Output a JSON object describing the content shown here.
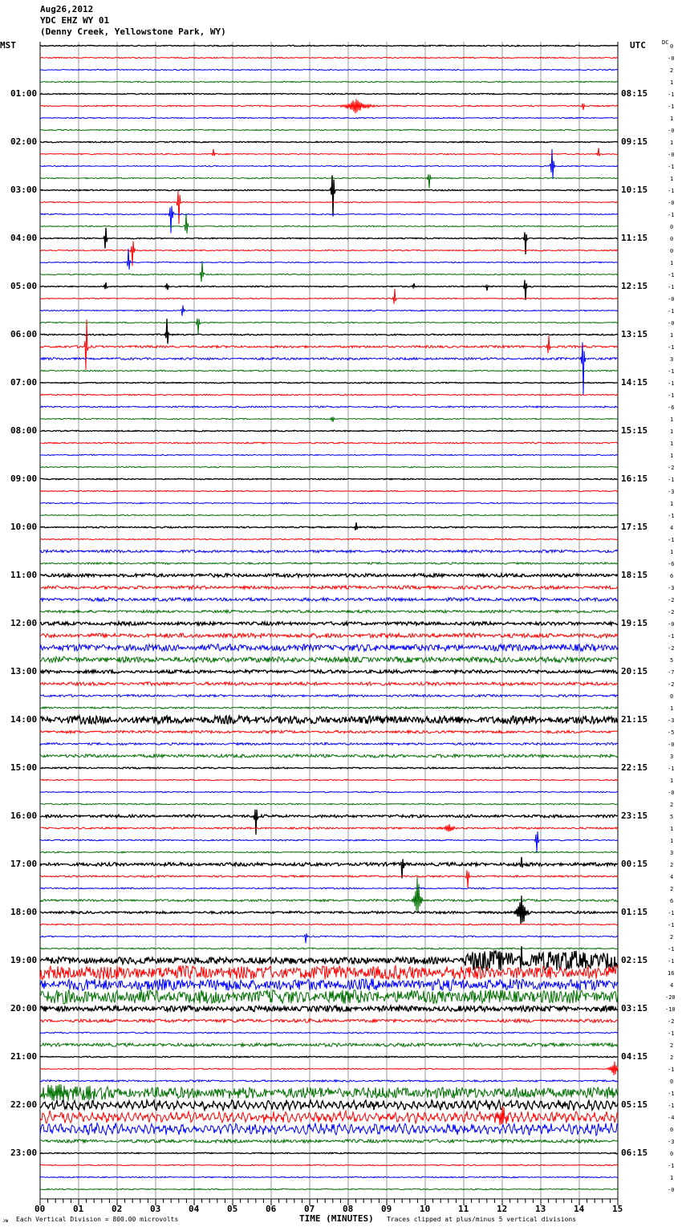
{
  "header": {
    "date": "Aug26,2012",
    "station": "YDC EHZ WY 01",
    "location": "(Denny Creek, Yellowstone Park, WY)"
  },
  "left_axis_title": "MST",
  "right_axis_title": "UTC",
  "dc_title": "DC",
  "footer": {
    "scale_note": "Each Vertical Division =  800.00 microvolts",
    "xlabel": "TIME (MINUTES)",
    "clip_note": "Traces clipped at plus/minus 5 vertical divisions"
  },
  "chart_data": {
    "type": "line",
    "title": "YDC EHZ WY 01 helicorder, Aug26,2012",
    "xlabel": "TIME (MINUTES)",
    "xlim": [
      0,
      15
    ],
    "x_ticks": [
      "00",
      "01",
      "02",
      "03",
      "04",
      "05",
      "06",
      "07",
      "08",
      "09",
      "10",
      "11",
      "12",
      "13",
      "14",
      "15"
    ],
    "traces_per_hour": 4,
    "colors": [
      "#000000",
      "#ff0000",
      "#0000ff",
      "#007000"
    ],
    "mst_labels": [
      "01:00",
      "02:00",
      "03:00",
      "04:00",
      "05:00",
      "06:00",
      "07:00",
      "08:00",
      "09:00",
      "10:00",
      "11:00",
      "12:00",
      "13:00",
      "14:00",
      "15:00",
      "16:00",
      "17:00",
      "18:00",
      "19:00",
      "20:00",
      "21:00",
      "22:00",
      "23:00"
    ],
    "utc_labels": [
      "08:15",
      "09:15",
      "10:15",
      "11:15",
      "12:15",
      "13:15",
      "14:15",
      "15:15",
      "16:15",
      "17:15",
      "18:15",
      "19:15",
      "20:15",
      "21:15",
      "22:15",
      "23:15",
      "00:15",
      "01:15",
      "02:15",
      "03:15",
      "04:15",
      "05:15",
      "06:15"
    ],
    "dc_offsets": [
      "0",
      "-0",
      "2",
      "1",
      "-1",
      "-1",
      "1",
      "-0",
      "1",
      "-0",
      "-1",
      "1",
      "-1",
      "-0",
      "-1",
      "0",
      "0",
      "0",
      "1",
      "-1",
      "-1",
      "-0",
      "-1",
      "-0",
      "1",
      "-1",
      "3",
      "-1",
      "-1",
      "-1",
      "-6",
      "1",
      "1",
      "1",
      "1",
      "-2",
      "-1",
      "-3",
      "1",
      "-1",
      "4",
      "-1",
      "1",
      "-6",
      "6",
      "-3",
      "-2",
      "-2",
      "-0",
      "-1",
      "-2",
      "5",
      "-7",
      "-2",
      "0",
      "1",
      "-3",
      "-5",
      "-0",
      "3",
      "-1",
      "1",
      "-0",
      "2",
      "5",
      "1",
      "1",
      "3",
      "2",
      "4",
      "2",
      "6",
      "-1",
      "-1",
      "2",
      "-1",
      "-1",
      "16",
      "4",
      "-20",
      "-10",
      "-2",
      "-1",
      "2",
      "2",
      "-1",
      "0",
      "-1",
      "-1",
      "-4",
      "0",
      "-3",
      "0",
      "-1",
      "1",
      "-0"
    ],
    "noise_level_divisions": [
      0.05,
      0.05,
      0.05,
      0.05,
      0.05,
      0.06,
      0.05,
      0.05,
      0.05,
      0.05,
      0.05,
      0.05,
      0.05,
      0.05,
      0.05,
      0.05,
      0.05,
      0.05,
      0.05,
      0.05,
      0.05,
      0.05,
      0.05,
      0.05,
      0.06,
      0.1,
      0.1,
      0.06,
      0.05,
      0.06,
      0.07,
      0.05,
      0.05,
      0.06,
      0.05,
      0.05,
      0.05,
      0.05,
      0.05,
      0.05,
      0.06,
      0.05,
      0.12,
      0.08,
      0.15,
      0.15,
      0.15,
      0.12,
      0.15,
      0.2,
      0.3,
      0.25,
      0.15,
      0.15,
      0.1,
      0.08,
      0.35,
      0.12,
      0.1,
      0.15,
      0.06,
      0.05,
      0.05,
      0.06,
      0.12,
      0.08,
      0.06,
      0.06,
      0.15,
      0.08,
      0.06,
      0.1,
      0.1,
      0.06,
      0.06,
      0.06,
      0.3,
      0.6,
      0.5,
      0.6,
      0.25,
      0.15,
      0.06,
      0.15,
      0.05,
      0.05,
      0.08,
      0.5,
      0.25,
      0.3,
      0.3,
      0.15,
      0.05,
      0.05,
      0.05,
      0.05
    ],
    "events": [
      {
        "trace": 5,
        "minute": 8.2,
        "amp": 0.7,
        "width": 0.5
      },
      {
        "trace": 5,
        "minute": 14.1,
        "amp": 0.6,
        "width": 0.05
      },
      {
        "trace": 9,
        "minute": 4.5,
        "amp": 0.6,
        "width": 0.05
      },
      {
        "trace": 9,
        "minute": 14.5,
        "amp": 0.6,
        "width": 0.05
      },
      {
        "trace": 10,
        "minute": 13.3,
        "amp": 2.2,
        "width": 0.06
      },
      {
        "trace": 11,
        "minute": 10.1,
        "amp": 1.2,
        "width": 0.06
      },
      {
        "trace": 12,
        "minute": 7.6,
        "amp": 3.2,
        "width": 0.06
      },
      {
        "trace": 13,
        "minute": 3.6,
        "amp": 2.5,
        "width": 0.05
      },
      {
        "trace": 14,
        "minute": 3.4,
        "amp": 2.8,
        "width": 0.06
      },
      {
        "trace": 15,
        "minute": 3.8,
        "amp": 2.2,
        "width": 0.05
      },
      {
        "trace": 16,
        "minute": 1.7,
        "amp": 2.2,
        "width": 0.05
      },
      {
        "trace": 16,
        "minute": 12.6,
        "amp": 2.2,
        "width": 0.05
      },
      {
        "trace": 17,
        "minute": 2.4,
        "amp": 2.2,
        "width": 0.06
      },
      {
        "trace": 18,
        "minute": 2.3,
        "amp": 2.2,
        "width": 0.05
      },
      {
        "trace": 19,
        "minute": 4.2,
        "amp": 2.2,
        "width": 0.05
      },
      {
        "trace": 20,
        "minute": 1.7,
        "amp": 0.8,
        "width": 0.05
      },
      {
        "trace": 20,
        "minute": 3.3,
        "amp": 0.6,
        "width": 0.05
      },
      {
        "trace": 20,
        "minute": 9.7,
        "amp": 0.4,
        "width": 0.05
      },
      {
        "trace": 20,
        "minute": 11.6,
        "amp": 0.5,
        "width": 0.05
      },
      {
        "trace": 20,
        "minute": 12.6,
        "amp": 1.5,
        "width": 0.05
      },
      {
        "trace": 21,
        "minute": 9.2,
        "amp": 1.6,
        "width": 0.05
      },
      {
        "trace": 22,
        "minute": 3.7,
        "amp": 1.3,
        "width": 0.05
      },
      {
        "trace": 23,
        "minute": 4.1,
        "amp": 1.6,
        "width": 0.05
      },
      {
        "trace": 24,
        "minute": 3.3,
        "amp": 2.2,
        "width": 0.05
      },
      {
        "trace": 25,
        "minute": 1.2,
        "amp": 4.2,
        "width": 0.05
      },
      {
        "trace": 25,
        "minute": 13.2,
        "amp": 2.2,
        "width": 0.05
      },
      {
        "trace": 26,
        "minute": 14.1,
        "amp": 4.2,
        "width": 0.06
      },
      {
        "trace": 31,
        "minute": 7.6,
        "amp": 0.4,
        "width": 0.1
      },
      {
        "trace": 40,
        "minute": 8.2,
        "amp": 0.6,
        "width": 0.06
      },
      {
        "trace": 64,
        "minute": 5.6,
        "amp": 2.2,
        "width": 0.06
      },
      {
        "trace": 65,
        "minute": 10.6,
        "amp": 0.5,
        "width": 0.3
      },
      {
        "trace": 66,
        "minute": 12.9,
        "amp": 2.2,
        "width": 0.05
      },
      {
        "trace": 68,
        "minute": 9.4,
        "amp": 1.6,
        "width": 0.06
      },
      {
        "trace": 68,
        "minute": 12.5,
        "amp": 1.2,
        "width": 0.05
      },
      {
        "trace": 69,
        "minute": 11.1,
        "amp": 1.6,
        "width": 0.05
      },
      {
        "trace": 71,
        "minute": 9.8,
        "amp": 2.6,
        "width": 0.15
      },
      {
        "trace": 72,
        "minute": 12.5,
        "amp": 1.8,
        "width": 0.2
      },
      {
        "trace": 74,
        "minute": 6.9,
        "amp": 0.8,
        "width": 0.05
      },
      {
        "trace": 76,
        "minute": 12.5,
        "amp": 1.6,
        "width": 0.05
      },
      {
        "trace": 87,
        "minute": 0.5,
        "amp": 0.6,
        "width": 2.0
      },
      {
        "trace": 85,
        "minute": 14.9,
        "amp": 0.8,
        "width": 0.2
      },
      {
        "trace": 89,
        "minute": 12.0,
        "amp": 0.8,
        "width": 0.3
      }
    ]
  }
}
